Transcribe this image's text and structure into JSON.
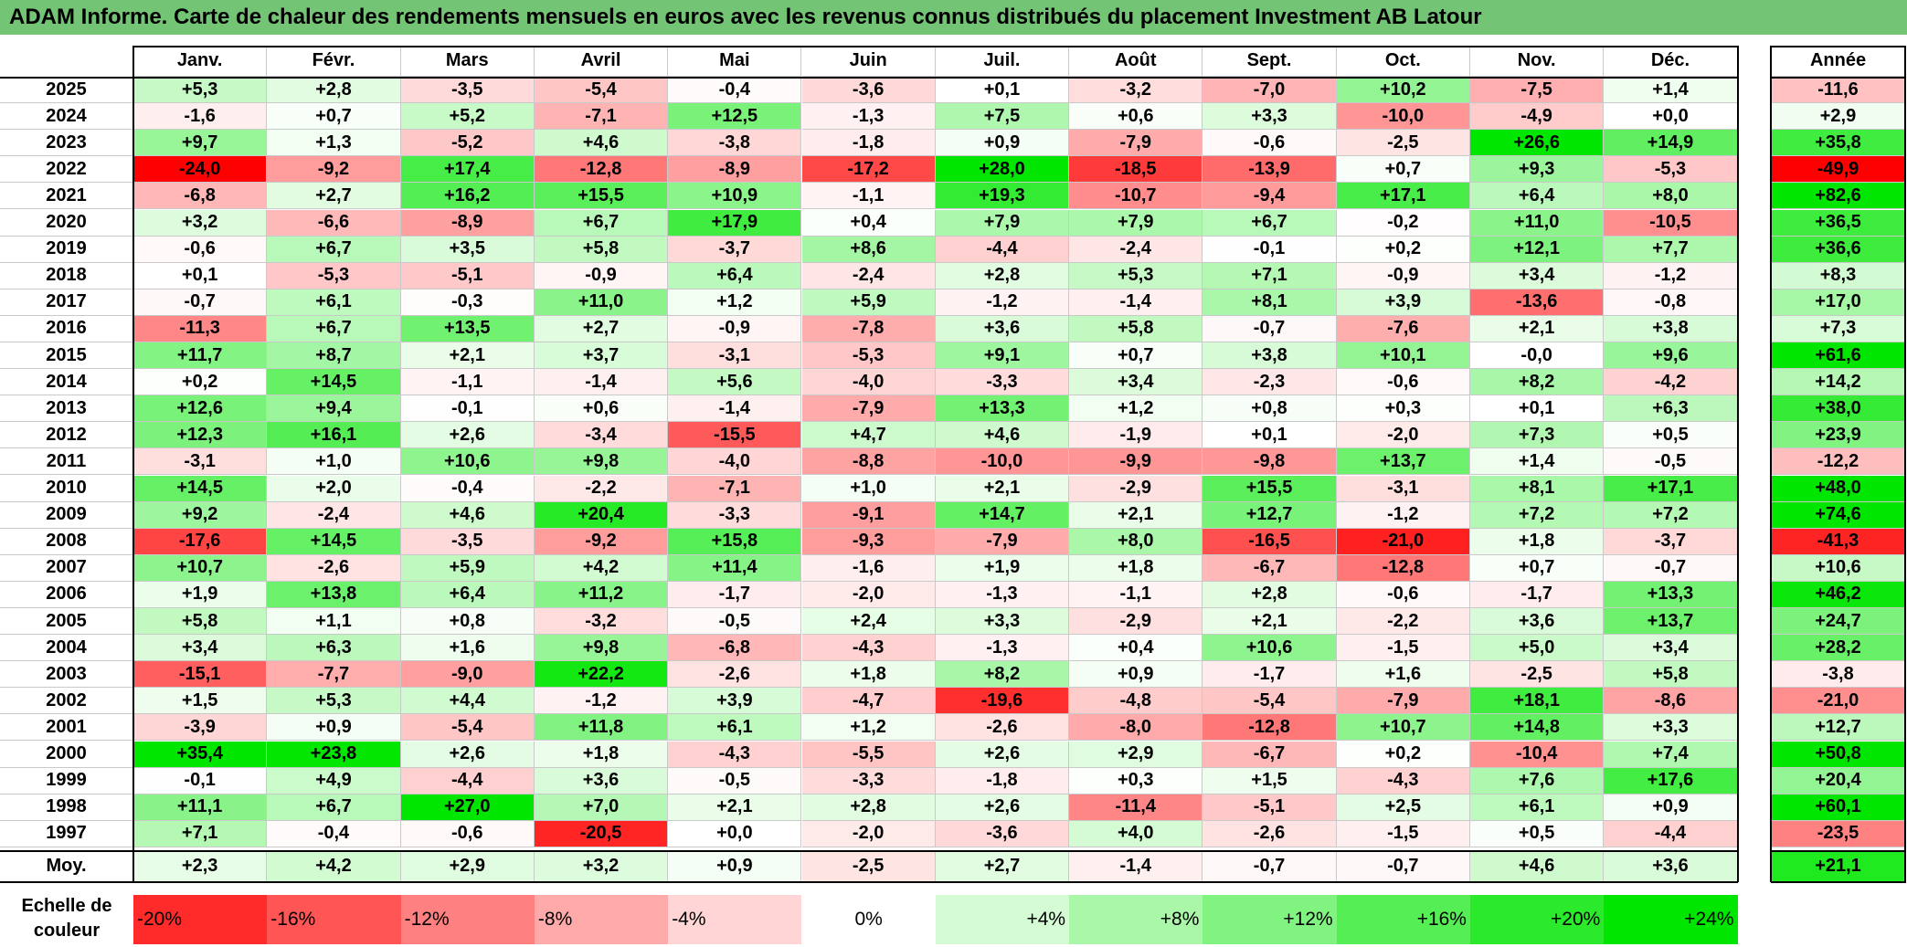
{
  "title": "ADAM Informe. Carte de chaleur des rendements mensuels en euros avec les revenus connus distribués du placement Investment AB Latour",
  "chart_data": {
    "type": "heatmap",
    "months": [
      "Janv.",
      "Févr.",
      "Mars",
      "Avril",
      "Mai",
      "Juin",
      "Juil.",
      "Août",
      "Sept.",
      "Oct.",
      "Nov.",
      "Déc."
    ],
    "year_header": "Année",
    "avg_label": "Moy.",
    "rows": [
      {
        "year": "2025",
        "values": [
          "+5,3",
          "+2,8",
          "-3,5",
          "-5,4",
          "-0,4",
          "-3,6",
          "+0,1",
          "-3,2",
          "-7,0",
          "+10,2",
          "-7,5",
          "+1,4"
        ],
        "annual": "-11,6"
      },
      {
        "year": "2024",
        "values": [
          "-1,6",
          "+0,7",
          "+5,2",
          "-7,1",
          "+12,5",
          "-1,3",
          "+7,5",
          "+0,6",
          "+3,3",
          "-10,0",
          "-4,9",
          "+0,0"
        ],
        "annual": "+2,9"
      },
      {
        "year": "2023",
        "values": [
          "+9,7",
          "+1,3",
          "-5,2",
          "+4,6",
          "-3,8",
          "-1,8",
          "+0,9",
          "-7,9",
          "-0,6",
          "-2,5",
          "+26,6",
          "+14,9"
        ],
        "annual": "+35,8"
      },
      {
        "year": "2022",
        "values": [
          "-24,0",
          "-9,2",
          "+17,4",
          "-12,8",
          "-8,9",
          "-17,2",
          "+28,0",
          "-18,5",
          "-13,9",
          "+0,7",
          "+9,3",
          "-5,3"
        ],
        "annual": "-49,9"
      },
      {
        "year": "2021",
        "values": [
          "-6,8",
          "+2,7",
          "+16,2",
          "+15,5",
          "+10,9",
          "-1,1",
          "+19,3",
          "-10,7",
          "-9,4",
          "+17,1",
          "+6,4",
          "+8,0"
        ],
        "annual": "+82,6"
      },
      {
        "year": "2020",
        "values": [
          "+3,2",
          "-6,6",
          "-8,9",
          "+6,7",
          "+17,9",
          "+0,4",
          "+7,9",
          "+7,9",
          "+6,7",
          "-0,2",
          "+11,0",
          "-10,5"
        ],
        "annual": "+36,5"
      },
      {
        "year": "2019",
        "values": [
          "-0,6",
          "+6,7",
          "+3,5",
          "+5,8",
          "-3,7",
          "+8,6",
          "-4,4",
          "-2,4",
          "-0,1",
          "+0,2",
          "+12,1",
          "+7,7"
        ],
        "annual": "+36,6"
      },
      {
        "year": "2018",
        "values": [
          "+0,1",
          "-5,3",
          "-5,1",
          "-0,9",
          "+6,4",
          "-2,4",
          "+2,8",
          "+5,3",
          "+7,1",
          "-0,9",
          "+3,4",
          "-1,2"
        ],
        "annual": "+8,3"
      },
      {
        "year": "2017",
        "values": [
          "-0,7",
          "+6,1",
          "-0,3",
          "+11,0",
          "+1,2",
          "+5,9",
          "-1,2",
          "-1,4",
          "+8,1",
          "+3,9",
          "-13,6",
          "-0,8"
        ],
        "annual": "+17,0"
      },
      {
        "year": "2016",
        "values": [
          "-11,3",
          "+6,7",
          "+13,5",
          "+2,7",
          "-0,9",
          "-7,8",
          "+3,6",
          "+5,8",
          "-0,7",
          "-7,6",
          "+2,1",
          "+3,8"
        ],
        "annual": "+7,3"
      },
      {
        "year": "2015",
        "values": [
          "+11,7",
          "+8,7",
          "+2,1",
          "+3,7",
          "-3,1",
          "-5,3",
          "+9,1",
          "+0,7",
          "+3,8",
          "+10,1",
          "-0,0",
          "+9,6"
        ],
        "annual": "+61,6"
      },
      {
        "year": "2014",
        "values": [
          "+0,2",
          "+14,5",
          "-1,1",
          "-1,4",
          "+5,6",
          "-4,0",
          "-3,3",
          "+3,4",
          "-2,3",
          "-0,6",
          "+8,2",
          "-4,2"
        ],
        "annual": "+14,2"
      },
      {
        "year": "2013",
        "values": [
          "+12,6",
          "+9,4",
          "-0,1",
          "+0,6",
          "-1,4",
          "-7,9",
          "+13,3",
          "+1,2",
          "+0,8",
          "+0,3",
          "+0,1",
          "+6,3"
        ],
        "annual": "+38,0"
      },
      {
        "year": "2012",
        "values": [
          "+12,3",
          "+16,1",
          "+2,6",
          "-3,4",
          "-15,5",
          "+4,7",
          "+4,6",
          "-1,9",
          "+0,1",
          "-2,0",
          "+7,3",
          "+0,5"
        ],
        "annual": "+23,9"
      },
      {
        "year": "2011",
        "values": [
          "-3,1",
          "+1,0",
          "+10,6",
          "+9,8",
          "-4,0",
          "-8,8",
          "-10,0",
          "-9,9",
          "-9,8",
          "+13,7",
          "+1,4",
          "-0,5"
        ],
        "annual": "-12,2"
      },
      {
        "year": "2010",
        "values": [
          "+14,5",
          "+2,0",
          "-0,4",
          "-2,2",
          "-7,1",
          "+1,0",
          "+2,1",
          "-2,9",
          "+15,5",
          "-3,1",
          "+8,1",
          "+17,1"
        ],
        "annual": "+48,0"
      },
      {
        "year": "2009",
        "values": [
          "+9,2",
          "-2,4",
          "+4,6",
          "+20,4",
          "-3,3",
          "-9,1",
          "+14,7",
          "+2,1",
          "+12,7",
          "-1,2",
          "+7,2",
          "+7,2"
        ],
        "annual": "+74,6"
      },
      {
        "year": "2008",
        "values": [
          "-17,6",
          "+14,5",
          "-3,5",
          "-9,2",
          "+15,8",
          "-9,3",
          "-7,9",
          "+8,0",
          "-16,5",
          "-21,0",
          "+1,8",
          "-3,7"
        ],
        "annual": "-41,3"
      },
      {
        "year": "2007",
        "values": [
          "+10,7",
          "-2,6",
          "+5,9",
          "+4,2",
          "+11,4",
          "-1,6",
          "+1,9",
          "+1,8",
          "-6,7",
          "-12,8",
          "+0,7",
          "-0,7"
        ],
        "annual": "+10,6"
      },
      {
        "year": "2006",
        "values": [
          "+1,9",
          "+13,8",
          "+6,4",
          "+11,2",
          "-1,7",
          "-2,0",
          "-1,3",
          "-1,1",
          "+2,8",
          "-0,6",
          "-1,7",
          "+13,3"
        ],
        "annual": "+46,2"
      },
      {
        "year": "2005",
        "values": [
          "+5,8",
          "+1,1",
          "+0,8",
          "-3,2",
          "-0,5",
          "+2,4",
          "+3,3",
          "-2,9",
          "+2,1",
          "-2,2",
          "+3,6",
          "+13,7"
        ],
        "annual": "+24,7"
      },
      {
        "year": "2004",
        "values": [
          "+3,4",
          "+6,3",
          "+1,6",
          "+9,8",
          "-6,8",
          "-4,3",
          "-1,3",
          "+0,4",
          "+10,6",
          "-1,5",
          "+5,0",
          "+3,4"
        ],
        "annual": "+28,2"
      },
      {
        "year": "2003",
        "values": [
          "-15,1",
          "-7,7",
          "-9,0",
          "+22,2",
          "-2,6",
          "+1,8",
          "+8,2",
          "+0,9",
          "-1,7",
          "+1,6",
          "-2,5",
          "+5,8"
        ],
        "annual": "-3,8"
      },
      {
        "year": "2002",
        "values": [
          "+1,5",
          "+5,3",
          "+4,4",
          "-1,2",
          "+3,9",
          "-4,7",
          "-19,6",
          "-4,8",
          "-5,4",
          "-7,9",
          "+18,1",
          "-8,6"
        ],
        "annual": "-21,0"
      },
      {
        "year": "2001",
        "values": [
          "-3,9",
          "+0,9",
          "-5,4",
          "+11,8",
          "+6,1",
          "+1,2",
          "-2,6",
          "-8,0",
          "-12,8",
          "+10,7",
          "+14,8",
          "+3,3"
        ],
        "annual": "+12,7"
      },
      {
        "year": "2000",
        "values": [
          "+35,4",
          "+23,8",
          "+2,6",
          "+1,8",
          "-4,3",
          "-5,5",
          "+2,6",
          "+2,9",
          "-6,7",
          "+0,2",
          "-10,4",
          "+7,4"
        ],
        "annual": "+50,8"
      },
      {
        "year": "1999",
        "values": [
          "-0,1",
          "+4,9",
          "-4,4",
          "+3,6",
          "-0,5",
          "-3,3",
          "-1,8",
          "+0,3",
          "+1,5",
          "-4,3",
          "+7,6",
          "+17,6"
        ],
        "annual": "+20,4"
      },
      {
        "year": "1998",
        "values": [
          "+11,1",
          "+6,7",
          "+27,0",
          "+7,0",
          "+2,1",
          "+2,8",
          "+2,6",
          "-11,4",
          "-5,1",
          "+2,5",
          "+6,1",
          "+0,9"
        ],
        "annual": "+60,1"
      },
      {
        "year": "1997",
        "values": [
          "+7,1",
          "-0,4",
          "-0,6",
          "-20,5",
          "+0,0",
          "-2,0",
          "-3,6",
          "+4,0",
          "-2,6",
          "-1,5",
          "+0,5",
          "-4,4"
        ],
        "annual": "-23,5"
      }
    ],
    "averages": [
      "+2,3",
      "+4,2",
      "+2,9",
      "+3,2",
      "+0,9",
      "-2,5",
      "+2,7",
      "-1,4",
      "-0,7",
      "-0,7",
      "+4,6",
      "+3,6"
    ],
    "annual_average": "+21,1",
    "color_scale": {
      "label_line1": "Echelle de",
      "label_line2": "couleur",
      "steps": [
        {
          "label": "-20%",
          "value": -20
        },
        {
          "label": "-16%",
          "value": -16
        },
        {
          "label": "-12%",
          "value": -12
        },
        {
          "label": "-8%",
          "value": -8
        },
        {
          "label": "-4%",
          "value": -4
        },
        {
          "label": "0%",
          "value": 0
        },
        {
          "label": "+4%",
          "value": 4
        },
        {
          "label": "+8%",
          "value": 8
        },
        {
          "label": "+12%",
          "value": 12
        },
        {
          "label": "+16%",
          "value": 16
        },
        {
          "label": "+20%",
          "value": 20
        },
        {
          "label": "+24%",
          "value": 24
        }
      ]
    }
  }
}
